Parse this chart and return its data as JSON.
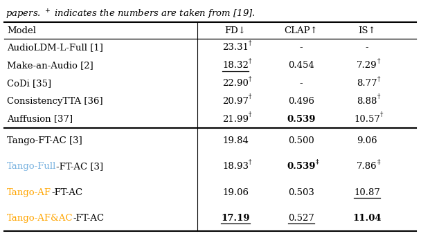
{
  "caption": "papers. ✝ indicates the numbers are taken from [19].",
  "col_headers": [
    "Model",
    "FD↓",
    "CLAP↑",
    "IS↑"
  ],
  "rows": [
    {
      "model_parts": [
        {
          "text": "AudioLDM-L-Full [1]",
          "color": "black",
          "bold": false
        }
      ],
      "fd": {
        "main": "23.31",
        "sup": "†",
        "bold": false,
        "underline": false
      },
      "clap": {
        "main": "-",
        "sup": "",
        "bold": false,
        "underline": false
      },
      "is": {
        "main": "-",
        "sup": "",
        "bold": false,
        "underline": false
      },
      "group": 0
    },
    {
      "model_parts": [
        {
          "text": "Make-an-Audio [2]",
          "color": "black",
          "bold": false
        }
      ],
      "fd": {
        "main": "18.32",
        "sup": "†",
        "bold": false,
        "underline": true
      },
      "clap": {
        "main": "0.454",
        "sup": "",
        "bold": false,
        "underline": false
      },
      "is": {
        "main": "7.29",
        "sup": "†",
        "bold": false,
        "underline": false
      },
      "group": 0
    },
    {
      "model_parts": [
        {
          "text": "CoDi [35]",
          "color": "black",
          "bold": false
        }
      ],
      "fd": {
        "main": "22.90",
        "sup": "†",
        "bold": false,
        "underline": false
      },
      "clap": {
        "main": "-",
        "sup": "",
        "bold": false,
        "underline": false
      },
      "is": {
        "main": "8.77",
        "sup": "†",
        "bold": false,
        "underline": false
      },
      "group": 0
    },
    {
      "model_parts": [
        {
          "text": "ConsistencyTTA [36]",
          "color": "black",
          "bold": false
        }
      ],
      "fd": {
        "main": "20.97",
        "sup": "†",
        "bold": false,
        "underline": false
      },
      "clap": {
        "main": "0.496",
        "sup": "",
        "bold": false,
        "underline": false
      },
      "is": {
        "main": "8.88",
        "sup": "†",
        "bold": false,
        "underline": false
      },
      "group": 0
    },
    {
      "model_parts": [
        {
          "text": "Auffusion [37]",
          "color": "black",
          "bold": false
        }
      ],
      "fd": {
        "main": "21.99",
        "sup": "†",
        "bold": false,
        "underline": false
      },
      "clap": {
        "main": "0.539",
        "sup": "",
        "bold": true,
        "underline": false
      },
      "is": {
        "main": "10.57",
        "sup": "†",
        "bold": false,
        "underline": false
      },
      "group": 0
    },
    {
      "model_parts": [
        {
          "text": "Tango-FT-AC [3]",
          "color": "black",
          "bold": false
        }
      ],
      "fd": {
        "main": "19.84",
        "sup": "",
        "bold": false,
        "underline": false
      },
      "clap": {
        "main": "0.500",
        "sup": "",
        "bold": false,
        "underline": false
      },
      "is": {
        "main": "9.06",
        "sup": "",
        "bold": false,
        "underline": false
      },
      "group": 1
    },
    {
      "model_parts": [
        {
          "text": "Tango-Full",
          "color": "#7ab3e0",
          "bold": false
        },
        {
          "text": "-FT-AC [3]",
          "color": "black",
          "bold": false
        }
      ],
      "fd": {
        "main": "18.93",
        "sup": "†",
        "bold": false,
        "underline": false
      },
      "clap": {
        "main": "0.539",
        "sup": "‡",
        "bold": true,
        "underline": false
      },
      "is": {
        "main": "7.86",
        "sup": "‡",
        "bold": false,
        "underline": false
      },
      "group": 1
    },
    {
      "model_parts": [
        {
          "text": "Tango-AF",
          "color": "#FFA500",
          "bold": false
        },
        {
          "text": "-FT-AC",
          "color": "black",
          "bold": false
        }
      ],
      "fd": {
        "main": "19.06",
        "sup": "",
        "bold": false,
        "underline": false
      },
      "clap": {
        "main": "0.503",
        "sup": "",
        "bold": false,
        "underline": false
      },
      "is": {
        "main": "10.87",
        "sup": "",
        "bold": false,
        "underline": true
      },
      "group": 1
    },
    {
      "model_parts": [
        {
          "text": "Tango-AF&AC",
          "color": "#FFA500",
          "bold": false
        },
        {
          "text": "-FT-AC",
          "color": "black",
          "bold": false
        }
      ],
      "fd": {
        "main": "17.19",
        "sup": "",
        "bold": true,
        "underline": true
      },
      "clap": {
        "main": "0.527",
        "sup": "",
        "bold": false,
        "underline": true
      },
      "is": {
        "main": "11.04",
        "sup": "",
        "bold": true,
        "underline": false
      },
      "group": 1
    }
  ],
  "background_color": "#ffffff",
  "font_size": 9.5,
  "sup_font_size": 6.5,
  "caption_font_size": 9.5
}
